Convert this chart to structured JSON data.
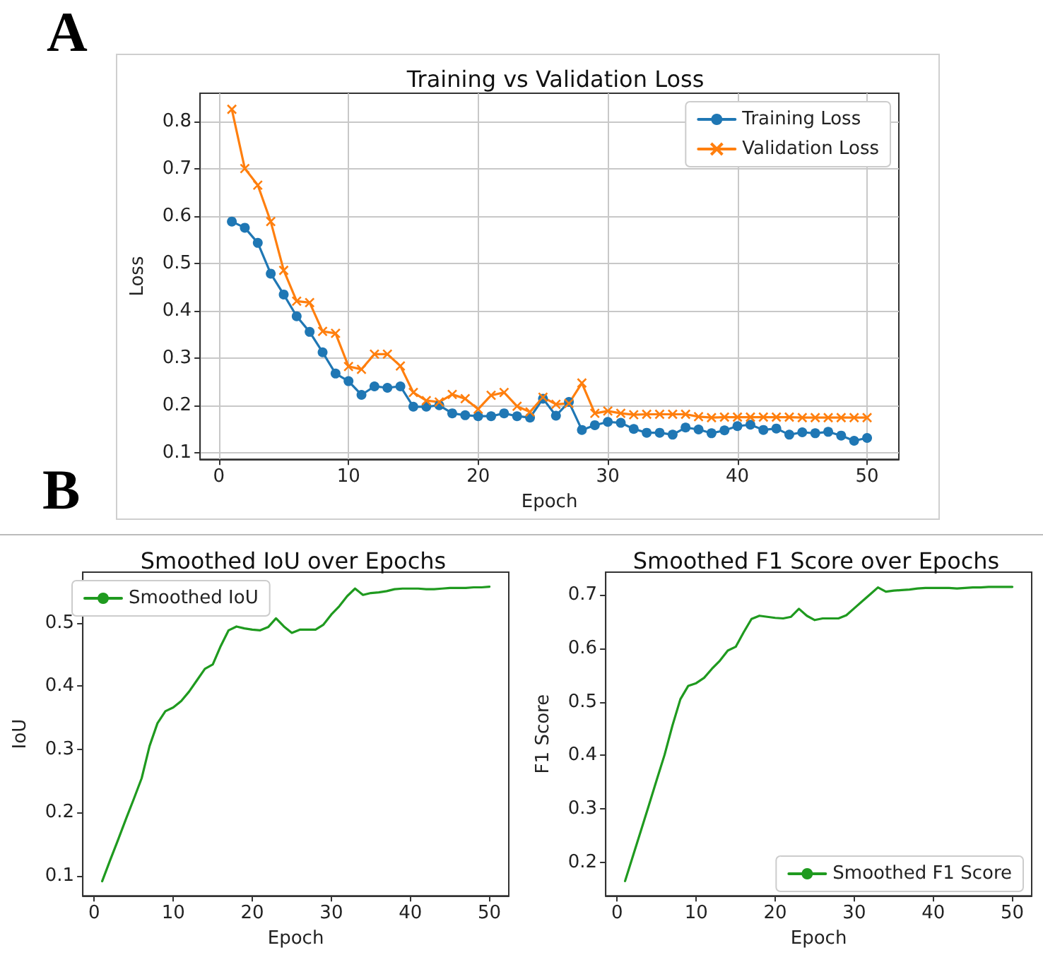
{
  "chart_data": [
    {
      "type": "line",
      "title": "Training vs Validation Loss",
      "xlabel": "Epoch",
      "ylabel": "Loss",
      "annotations": [
        "A"
      ],
      "x": [
        1,
        2,
        3,
        4,
        5,
        6,
        7,
        8,
        9,
        10,
        11,
        12,
        13,
        14,
        15,
        16,
        17,
        18,
        19,
        20,
        21,
        22,
        23,
        24,
        25,
        26,
        27,
        28,
        29,
        30,
        31,
        32,
        33,
        34,
        35,
        36,
        37,
        38,
        39,
        40,
        41,
        42,
        43,
        44,
        45,
        46,
        47,
        48,
        49,
        50
      ],
      "series": [
        {
          "name": "Training Loss",
          "color": "#1f77b4",
          "marker": "circle",
          "values": [
            0.589,
            0.576,
            0.544,
            0.479,
            0.435,
            0.389,
            0.356,
            0.313,
            0.268,
            0.252,
            0.223,
            0.241,
            0.238,
            0.241,
            0.198,
            0.198,
            0.201,
            0.184,
            0.18,
            0.178,
            0.178,
            0.184,
            0.178,
            0.175,
            0.215,
            0.179,
            0.208,
            0.149,
            0.159,
            0.166,
            0.164,
            0.151,
            0.143,
            0.143,
            0.139,
            0.154,
            0.15,
            0.142,
            0.148,
            0.157,
            0.16,
            0.149,
            0.152,
            0.139,
            0.144,
            0.142,
            0.145,
            0.137,
            0.126,
            0.132
          ]
        },
        {
          "name": "Validation Loss",
          "color": "#ff7f0e",
          "marker": "cross",
          "values": [
            0.826,
            0.701,
            0.666,
            0.589,
            0.486,
            0.421,
            0.418,
            0.357,
            0.353,
            0.283,
            0.277,
            0.309,
            0.309,
            0.284,
            0.228,
            0.211,
            0.208,
            0.224,
            0.215,
            0.193,
            0.222,
            0.228,
            0.199,
            0.187,
            0.218,
            0.203,
            0.205,
            0.248,
            0.184,
            0.189,
            0.184,
            0.181,
            0.182,
            0.182,
            0.182,
            0.182,
            0.177,
            0.175,
            0.176,
            0.176,
            0.176,
            0.176,
            0.176,
            0.176,
            0.175,
            0.175,
            0.175,
            0.175,
            0.175,
            0.175
          ]
        }
      ],
      "xlim": [
        -1.45,
        52.45
      ],
      "xticks": [
        0,
        10,
        20,
        30,
        40,
        50
      ],
      "ylim": [
        0.087,
        0.86
      ],
      "yticks": [
        0.1,
        0.2,
        0.3,
        0.4,
        0.5,
        0.6,
        0.7,
        0.8
      ],
      "grid": true,
      "legend": "top right"
    },
    {
      "type": "line",
      "title": "Smoothed IoU over Epochs",
      "xlabel": "Epoch",
      "ylabel": "IoU",
      "annotations": [
        "B"
      ],
      "x": [
        1,
        2,
        3,
        4,
        5,
        6,
        7,
        8,
        9,
        10,
        11,
        12,
        13,
        14,
        15,
        16,
        17,
        18,
        19,
        20,
        21,
        22,
        23,
        24,
        25,
        26,
        27,
        28,
        29,
        30,
        31,
        32,
        33,
        34,
        35,
        36,
        37,
        38,
        39,
        40,
        41,
        42,
        43,
        44,
        45,
        46,
        47,
        48,
        49,
        50
      ],
      "series": [
        {
          "name": "Smoothed IoU",
          "color": "#1f9a1f",
          "values": [
            0.091,
            0.124,
            0.156,
            0.189,
            0.221,
            0.254,
            0.305,
            0.341,
            0.36,
            0.366,
            0.376,
            0.391,
            0.409,
            0.427,
            0.434,
            0.463,
            0.488,
            0.494,
            0.491,
            0.489,
            0.488,
            0.493,
            0.507,
            0.494,
            0.484,
            0.489,
            0.489,
            0.489,
            0.497,
            0.513,
            0.526,
            0.542,
            0.554,
            0.544,
            0.547,
            0.548,
            0.55,
            0.553,
            0.554,
            0.554,
            0.554,
            0.553,
            0.553,
            0.554,
            0.555,
            0.555,
            0.555,
            0.556,
            0.556,
            0.557
          ]
        }
      ],
      "xlim": [
        -1.45,
        52.45
      ],
      "xticks": [
        0,
        10,
        20,
        30,
        40,
        50
      ],
      "ylim": [
        0.068,
        0.58
      ],
      "yticks": [
        0.1,
        0.2,
        0.3,
        0.4,
        0.5
      ],
      "marker": "none",
      "grid": false,
      "legend": "top left"
    },
    {
      "type": "line",
      "title": "Smoothed F1 Score over Epochs",
      "xlabel": "Epoch",
      "ylabel": "F1 Score",
      "x": [
        1,
        2,
        3,
        4,
        5,
        6,
        7,
        8,
        9,
        10,
        11,
        12,
        13,
        14,
        15,
        16,
        17,
        18,
        19,
        20,
        21,
        22,
        23,
        24,
        25,
        26,
        27,
        28,
        29,
        30,
        31,
        32,
        33,
        34,
        35,
        36,
        37,
        38,
        39,
        40,
        41,
        42,
        43,
        44,
        45,
        46,
        47,
        48,
        49,
        50
      ],
      "series": [
        {
          "name": "Smoothed F1 Score",
          "color": "#1f9a1f",
          "values": [
            0.165,
            0.212,
            0.259,
            0.306,
            0.354,
            0.401,
            0.456,
            0.505,
            0.53,
            0.535,
            0.545,
            0.562,
            0.577,
            0.596,
            0.603,
            0.63,
            0.655,
            0.661,
            0.659,
            0.657,
            0.656,
            0.659,
            0.674,
            0.661,
            0.653,
            0.656,
            0.656,
            0.656,
            0.662,
            0.675,
            0.688,
            0.701,
            0.714,
            0.706,
            0.708,
            0.709,
            0.71,
            0.712,
            0.713,
            0.713,
            0.713,
            0.713,
            0.712,
            0.713,
            0.714,
            0.714,
            0.715,
            0.715,
            0.715,
            0.715
          ]
        }
      ],
      "xlim": [
        -1.45,
        52.45
      ],
      "xticks": [
        0,
        10,
        20,
        30,
        40,
        50
      ],
      "ylim": [
        0.1375,
        0.7425
      ],
      "yticks": [
        0.2,
        0.3,
        0.4,
        0.5,
        0.6,
        0.7
      ],
      "marker": "none",
      "grid": false,
      "legend": "bottom right"
    }
  ]
}
